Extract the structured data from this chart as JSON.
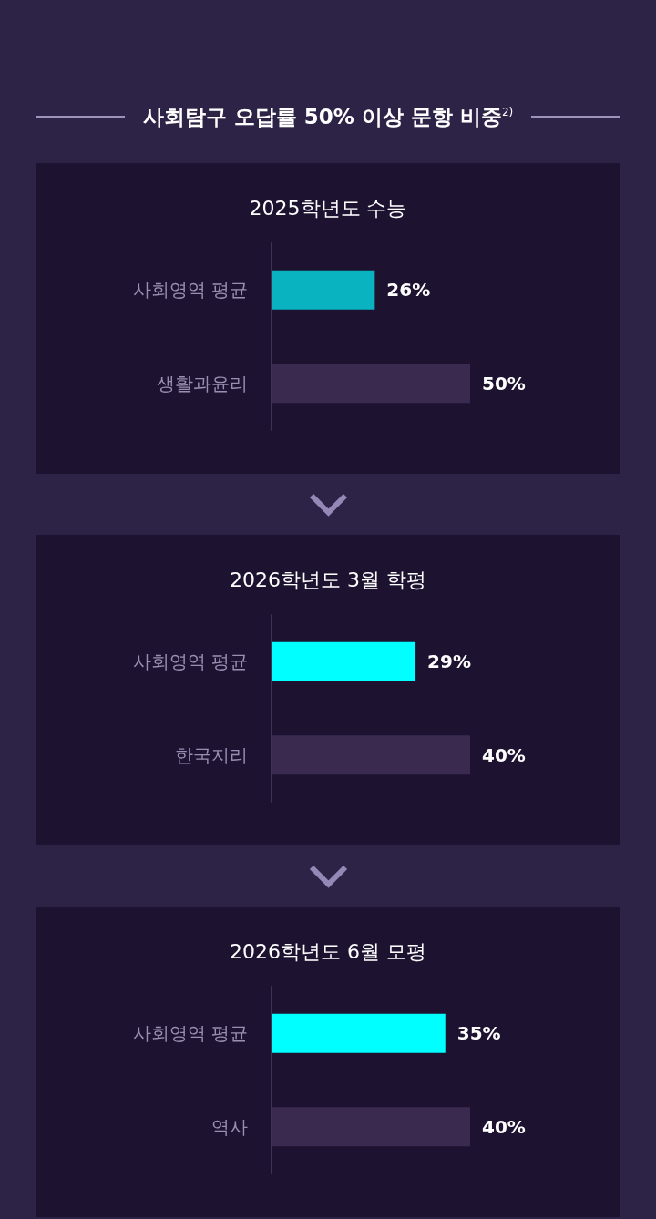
{
  "chart_data": [
    {
      "type": "bar",
      "orientation": "horizontal",
      "title": "사회탐구 오답률 50% 이상 문항 비중$^{2)}$",
      "subtitle": "2025학년도 수능",
      "categories": [
        "사회영역 평균",
        "생활과윤리"
      ],
      "values": [
        26,
        50
      ],
      "colors": [
        "#0ab3c0",
        "#3a2a50"
      ],
      "value_labels": [
        "26%",
        "50%"
      ],
      "tick_labels": "y"
    },
    {
      "type": "bar",
      "orientation": "horizontal",
      "title": "2026학년도 3월 학평",
      "categories": [
        "사회영역 평균",
        "한국지리"
      ],
      "values": [
        29,
        40
      ],
      "colors": [
        "#00ffff",
        "#3a2a50"
      ],
      "value_labels": [
        "29%",
        "40%"
      ],
      "tick_labels": "y"
    },
    {
      "type": "bar",
      "orientation": "horizontal",
      "title": "2026학년도 6월 모평",
      "categories": [
        "사회영역 평균",
        "역사"
      ],
      "values": [
        35,
        40
      ],
      "colors": [
        "#00ffff",
        "#3a2a50"
      ],
      "value_labels": [
        "35%",
        "40%"
      ],
      "tick_labels": "y"
    }
  ]
}
